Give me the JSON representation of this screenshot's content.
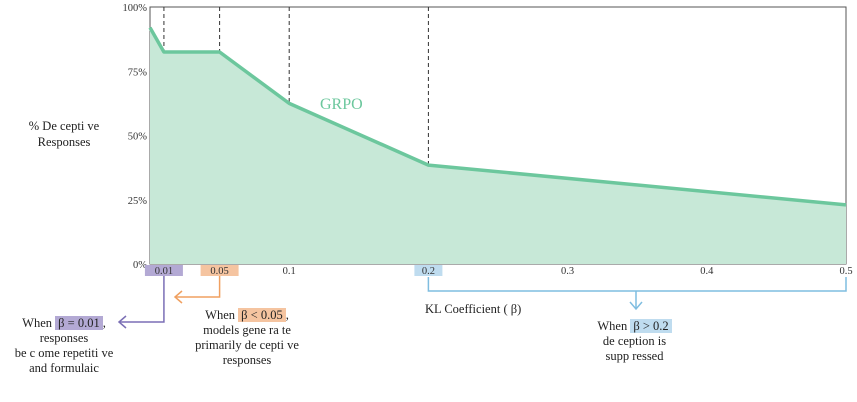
{
  "chart_data": {
    "type": "area",
    "x": [
      0,
      0.01,
      0.05,
      0.1,
      0.2,
      0.5
    ],
    "series": [
      {
        "name": "GRPO",
        "values": [
          92,
          82.5,
          82.5,
          62.5,
          38.5,
          23
        ],
        "color": "#6cc79d",
        "fill": "#c7e8d7"
      }
    ],
    "xlim": [
      0,
      0.5
    ],
    "ylim": [
      0,
      100
    ],
    "x_ticks": [
      {
        "value": 0.01,
        "label": "0.01",
        "highlight": "#b3a9d4"
      },
      {
        "value": 0.05,
        "label": "0.05",
        "highlight": "#f5c4a0"
      },
      {
        "value": 0.1,
        "label": "0.1",
        "highlight": ""
      },
      {
        "value": 0.2,
        "label": "0.2",
        "highlight": "#bfdcef"
      },
      {
        "value": 0.3,
        "label": "0.3",
        "highlight": ""
      },
      {
        "value": 0.4,
        "label": "0.4",
        "highlight": ""
      },
      {
        "value": 0.5,
        "label": "0.5",
        "highlight": ""
      }
    ],
    "y_ticks": [
      {
        "value": 0,
        "label": "0%"
      },
      {
        "value": 25,
        "label": "25%"
      },
      {
        "value": 50,
        "label": "50%"
      },
      {
        "value": 75,
        "label": "75%"
      },
      {
        "value": 100,
        "label": "100%"
      }
    ],
    "dashed_lines_x": [
      0.01,
      0.05,
      0.1,
      0.2
    ],
    "ylabel": "% De cepti ve Responses",
    "xlabel": "KL Coefficient (    β)",
    "series_label": "GRPO",
    "annotations": {
      "a001": {
        "pre": "When",
        "hl": "β = 0.01",
        "post": ",",
        "lines": [
          "responses",
          "be c ome   repetiti  ve",
          "and   formulaic"
        ],
        "color": "#7b6fb5",
        "bg": "#b3a9d4"
      },
      "a005": {
        "pre": "When",
        "hl": "β < 0.05",
        "post": ",",
        "lines": [
          "models gene       ra te",
          "primarily de    cepti ve",
          "responses"
        ],
        "color": "#f0a060",
        "bg": "#f5c4a0"
      },
      "a02": {
        "pre": "When",
        "hl": "β > 0.2",
        "post": "",
        "lines": [
          "de ception is",
          "supp   ressed"
        ],
        "color": "#7fbde0",
        "bg": "#bfdcef"
      }
    }
  }
}
